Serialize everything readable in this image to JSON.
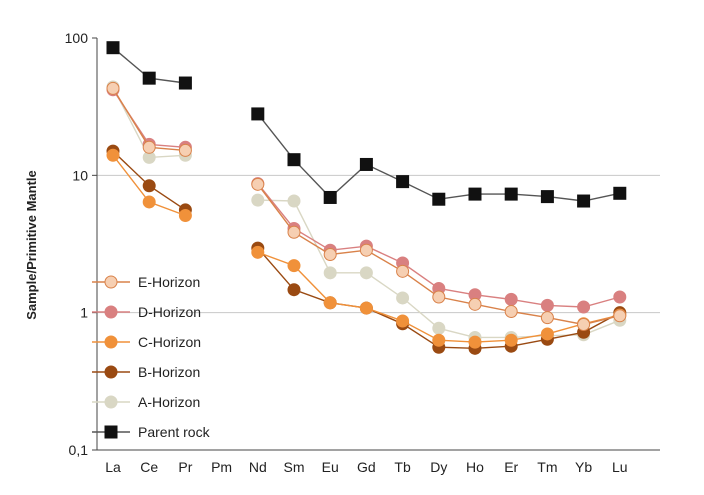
{
  "chart_data": {
    "type": "line",
    "title": "",
    "xlabel": "",
    "ylabel": "Sample/Primitive Mantle",
    "yscale": "log",
    "ylim": [
      0.1,
      100
    ],
    "y_ticks": [
      {
        "value": 100,
        "label": "100"
      },
      {
        "value": 10,
        "label": "10"
      },
      {
        "value": 1,
        "label": "1"
      },
      {
        "value": 0.1,
        "label": "0,1"
      }
    ],
    "gridlines_at": [
      10,
      1
    ],
    "legend_position": "bottom-left",
    "categories": [
      "La",
      "Ce",
      "Pr",
      "Pm",
      "Nd",
      "Sm",
      "Eu",
      "Gd",
      "Tb",
      "Dy",
      "Ho",
      "Er",
      "Tm",
      "Yb",
      "Lu"
    ],
    "series": [
      {
        "name": "A-Horizon",
        "marker": "circle",
        "color": "#d9d7c4",
        "line_color": "#d9d7c4",
        "values": [
          44,
          13.5,
          14,
          null,
          6.6,
          6.5,
          1.95,
          1.95,
          1.28,
          0.77,
          0.66,
          0.66,
          0.68,
          0.69,
          0.88
        ]
      },
      {
        "name": "B-Horizon",
        "marker": "circle",
        "color": "#9a4a12",
        "line_color": "#9a4a12",
        "values": [
          15,
          8.4,
          5.6,
          null,
          2.95,
          1.47,
          1.18,
          1.08,
          0.83,
          0.56,
          0.55,
          0.57,
          0.64,
          0.72,
          1.0
        ]
      },
      {
        "name": "C-Horizon",
        "marker": "circle",
        "color": "#f0913a",
        "line_color": "#f0913a",
        "values": [
          14,
          6.4,
          5.1,
          null,
          2.75,
          2.2,
          1.18,
          1.08,
          0.87,
          0.63,
          0.61,
          0.63,
          0.7,
          0.83,
          0.96
        ]
      },
      {
        "name": "D-Horizon",
        "marker": "circle",
        "color": "#d98080",
        "line_color": "#d98080",
        "values": [
          42,
          16.8,
          16,
          null,
          8.7,
          4.1,
          2.85,
          3.05,
          2.3,
          1.5,
          1.35,
          1.25,
          1.13,
          1.1,
          1.3
        ]
      },
      {
        "name": "E-Horizon",
        "marker": "circle",
        "color": "#f6cfb2",
        "line_color": "#d9824a",
        "values": [
          43,
          16,
          15.2,
          null,
          8.6,
          3.85,
          2.65,
          2.85,
          2.0,
          1.3,
          1.15,
          1.02,
          0.92,
          0.82,
          0.95
        ]
      },
      {
        "name": "Parent rock",
        "marker": "square",
        "color": "#111111",
        "line_color": "#555555",
        "values": [
          85,
          51,
          47,
          null,
          28,
          13,
          6.9,
          12,
          9,
          6.7,
          7.3,
          7.3,
          7.0,
          6.5,
          7.4
        ]
      }
    ],
    "legend_order": [
      "E-Horizon",
      "D-Horizon",
      "C-Horizon",
      "B-Horizon",
      "A-Horizon",
      "Parent rock"
    ]
  }
}
